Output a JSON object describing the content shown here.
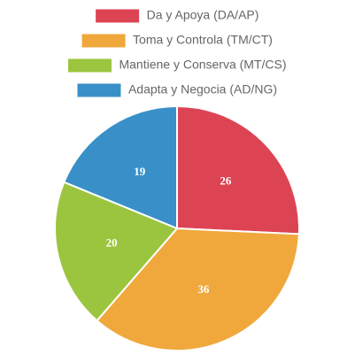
{
  "chart_data": {
    "type": "pie",
    "categories": [
      "Da y Apoya (DA/AP)",
      "Toma y Controla (TM/CT)",
      "Mantiene y Conserva (MT/CS)",
      "Adapta y Negocia (AD/NG)"
    ],
    "values": [
      26,
      36,
      20,
      19
    ],
    "colors": [
      "#dc4454",
      "#f0a83c",
      "#9bc53f",
      "#3990c8"
    ],
    "legend": "top"
  }
}
